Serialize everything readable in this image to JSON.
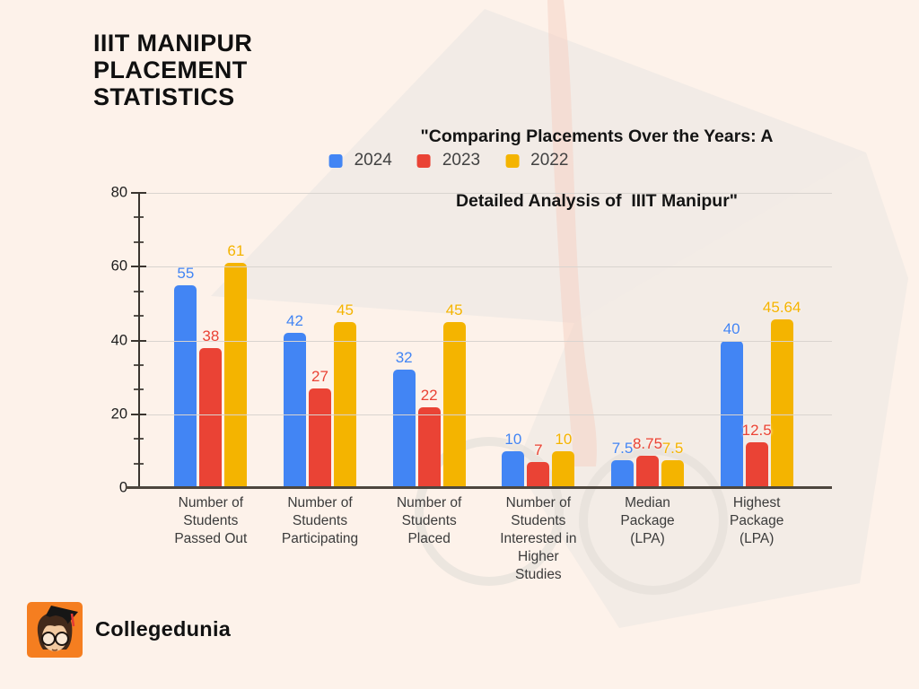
{
  "page": {
    "background": "#FDF2EA",
    "watermark_gray": "#E9E5E1",
    "watermark_pink": "#F6CFC2"
  },
  "header": {
    "title_lines": [
      "IIIT MANIPUR",
      "PLACEMENT",
      "STATISTICS"
    ],
    "subtitle_lines": [
      "\"Comparing Placements Over the Years: A",
      "Detailed Analysis of  IIIT Manipur\""
    ]
  },
  "legend": [
    {
      "label": "2024",
      "color": "#4285F4"
    },
    {
      "label": "2023",
      "color": "#EA4335"
    },
    {
      "label": "2022",
      "color": "#F4B400"
    }
  ],
  "chart_data": {
    "type": "bar",
    "title": "IIIT Manipur Placement Statistics",
    "categories": [
      "Number of Students Passed Out",
      "Number of Students Participating",
      "Number of Students Placed",
      "Number of Students Interested in Higher Studies",
      "Median Package (LPA)",
      "Highest Package (LPA)"
    ],
    "categories_wrapped": [
      "Number of\nStudents\nPassed Out",
      "Number of\nStudents\nParticipating",
      "Number of\nStudents\nPlaced",
      "Number of\nStudents\nInterested in\nHigher\nStudies",
      "Median\nPackage\n(LPA)",
      "Highest\nPackage\n(LPA)"
    ],
    "series": [
      {
        "name": "2024",
        "color": "#4285F4",
        "values": [
          55,
          42,
          32,
          10,
          7.5,
          40
        ]
      },
      {
        "name": "2023",
        "color": "#EA4335",
        "values": [
          38,
          27,
          22,
          7,
          8.75,
          12.5
        ]
      },
      {
        "name": "2022",
        "color": "#F4B400",
        "values": [
          61,
          45,
          45,
          10,
          7.5,
          45.64
        ]
      }
    ],
    "xlabel": "",
    "ylabel": "",
    "ylim": [
      0,
      80
    ],
    "yticks": [
      0,
      20,
      40,
      60,
      80
    ],
    "grid": true,
    "legend_position": "top",
    "value_labels": true
  },
  "footer": {
    "brand": "Collegedunia",
    "logo_color": "#F57E20"
  }
}
